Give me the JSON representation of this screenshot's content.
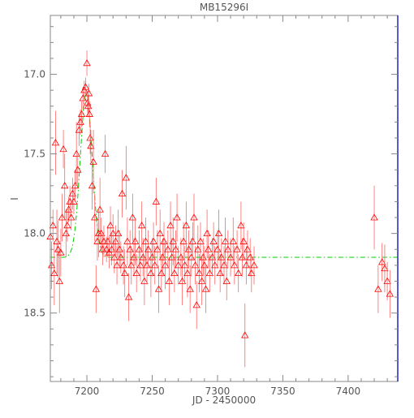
{
  "chart_data": {
    "type": "scatter",
    "title": "MB15296I",
    "xlabel": "JD - 2450000",
    "ylabel": "I",
    "xlim": [
      7172,
      7438
    ],
    "ylim": [
      18.93,
      16.63
    ],
    "y_inverted": true,
    "x_ticks": [
      7200,
      7250,
      7300,
      7350,
      7400
    ],
    "y_ticks": [
      17.0,
      17.5,
      18.0,
      18.5
    ],
    "grid": false,
    "series": [
      {
        "marker": "triangle",
        "color": "#ff0000",
        "points": [
          [
            7172,
            18.02,
            0.1
          ],
          [
            7173,
            18.2,
            0.15
          ],
          [
            7174,
            17.95,
            0.1
          ],
          [
            7175,
            18.25,
            0.2
          ],
          [
            7176,
            17.43,
            0.2
          ],
          [
            7177,
            18.05,
            0.2
          ],
          [
            7178,
            18.1,
            0.18
          ],
          [
            7179,
            18.3,
            0.2
          ],
          [
            7180,
            18.12,
            0.15
          ],
          [
            7181,
            17.9,
            0.15
          ],
          [
            7182,
            17.47,
            0.12
          ],
          [
            7183,
            17.7,
            0.2
          ],
          [
            7184,
            18.0,
            0.15
          ],
          [
            7185,
            17.95,
            0.1
          ],
          [
            7186,
            17.85,
            0.08
          ],
          [
            7187,
            17.8,
            0.1
          ],
          [
            7188,
            17.9,
            0.08
          ],
          [
            7189,
            17.75,
            0.1
          ],
          [
            7190,
            17.8,
            0.08
          ],
          [
            7191,
            17.7,
            0.1
          ],
          [
            7192,
            17.5,
            0.2
          ],
          [
            7193,
            17.6,
            0.1
          ],
          [
            7194,
            17.35,
            0.1
          ],
          [
            7195,
            17.3,
            0.08
          ],
          [
            7196,
            17.25,
            0.08
          ],
          [
            7197,
            17.15,
            0.07
          ],
          [
            7198,
            17.1,
            0.06
          ],
          [
            7199,
            17.08,
            0.06
          ],
          [
            7200,
            16.93,
            0.08
          ],
          [
            7200.5,
            17.18,
            0.06
          ],
          [
            7201,
            17.2,
            0.07
          ],
          [
            7201.5,
            17.12,
            0.06
          ],
          [
            7202,
            17.25,
            0.08
          ],
          [
            7202.5,
            17.4,
            0.1
          ],
          [
            7203,
            17.45,
            0.1
          ],
          [
            7204,
            17.7,
            0.15
          ],
          [
            7205,
            17.55,
            0.2
          ],
          [
            7206,
            17.9,
            0.15
          ],
          [
            7207,
            18.35,
            0.15
          ],
          [
            7208,
            18.05,
            0.12
          ],
          [
            7209,
            18.0,
            0.15
          ],
          [
            7210,
            17.85,
            0.2
          ],
          [
            7211,
            18.0,
            0.1
          ],
          [
            7212,
            18.1,
            0.1
          ],
          [
            7213,
            18.05,
            0.1
          ],
          [
            7214,
            17.5,
            0.12
          ],
          [
            7215,
            18.1,
            0.08
          ],
          [
            7216,
            18.05,
            0.1
          ],
          [
            7217,
            18.12,
            0.1
          ],
          [
            7218,
            17.95,
            0.12
          ],
          [
            7219,
            18.1,
            0.1
          ],
          [
            7220,
            18.0,
            0.12
          ],
          [
            7221,
            18.15,
            0.1
          ],
          [
            7222,
            18.05,
            0.1
          ],
          [
            7223,
            18.2,
            0.12
          ],
          [
            7224,
            18.0,
            0.15
          ],
          [
            7225,
            18.1,
            0.12
          ],
          [
            7226,
            18.15,
            0.1
          ],
          [
            7227,
            17.75,
            0.15
          ],
          [
            7228,
            18.2,
            0.12
          ],
          [
            7229,
            18.25,
            0.15
          ],
          [
            7230,
            17.65,
            0.2
          ],
          [
            7231,
            18.05,
            0.15
          ],
          [
            7232,
            18.4,
            0.15
          ],
          [
            7233,
            18.1,
            0.12
          ],
          [
            7234,
            18.2,
            0.12
          ],
          [
            7235,
            17.9,
            0.15
          ],
          [
            7236,
            18.15,
            0.12
          ],
          [
            7237,
            18.05,
            0.15
          ],
          [
            7238,
            18.25,
            0.12
          ],
          [
            7240,
            18.1,
            0.12
          ],
          [
            7241,
            18.2,
            0.1
          ],
          [
            7242,
            17.95,
            0.15
          ],
          [
            7243,
            18.15,
            0.12
          ],
          [
            7244,
            18.3,
            0.15
          ],
          [
            7245,
            18.05,
            0.15
          ],
          [
            7246,
            18.2,
            0.12
          ],
          [
            7247,
            18.1,
            0.12
          ],
          [
            7249,
            18.25,
            0.15
          ],
          [
            7250,
            18.15,
            0.12
          ],
          [
            7251,
            18.05,
            0.12
          ],
          [
            7252,
            18.2,
            0.12
          ],
          [
            7253,
            17.8,
            0.15
          ],
          [
            7254,
            18.1,
            0.12
          ],
          [
            7255,
            18.35,
            0.15
          ],
          [
            7256,
            18.0,
            0.15
          ],
          [
            7257,
            18.25,
            0.12
          ],
          [
            7258,
            18.15,
            0.12
          ],
          [
            7259,
            18.05,
            0.12
          ],
          [
            7260,
            18.2,
            0.15
          ],
          [
            7262,
            18.1,
            0.12
          ],
          [
            7263,
            18.3,
            0.15
          ],
          [
            7264,
            17.95,
            0.15
          ],
          [
            7265,
            18.15,
            0.12
          ],
          [
            7266,
            18.05,
            0.15
          ],
          [
            7267,
            18.25,
            0.12
          ],
          [
            7268,
            18.1,
            0.12
          ],
          [
            7269,
            17.9,
            0.15
          ],
          [
            7270,
            18.2,
            0.12
          ],
          [
            7272,
            18.15,
            0.12
          ],
          [
            7273,
            18.3,
            0.15
          ],
          [
            7274,
            18.05,
            0.12
          ],
          [
            7275,
            18.2,
            0.12
          ],
          [
            7276,
            17.95,
            0.15
          ],
          [
            7277,
            18.25,
            0.15
          ],
          [
            7278,
            18.1,
            0.12
          ],
          [
            7279,
            18.35,
            0.15
          ],
          [
            7280,
            18.15,
            0.12
          ],
          [
            7281,
            18.05,
            0.12
          ],
          [
            7282,
            17.9,
            0.15
          ],
          [
            7283,
            18.2,
            0.12
          ],
          [
            7284,
            18.45,
            0.15
          ],
          [
            7285,
            18.1,
            0.15
          ],
          [
            7286,
            18.25,
            0.12
          ],
          [
            7287,
            18.05,
            0.12
          ],
          [
            7288,
            18.3,
            0.15
          ],
          [
            7289,
            18.15,
            0.12
          ],
          [
            7290,
            18.2,
            0.12
          ],
          [
            7291,
            18.35,
            0.15
          ],
          [
            7292,
            18.0,
            0.15
          ],
          [
            7293,
            18.1,
            0.12
          ],
          [
            7294,
            18.25,
            0.12
          ],
          [
            7296,
            18.15,
            0.12
          ],
          [
            7297,
            18.05,
            0.12
          ],
          [
            7298,
            18.2,
            0.12
          ],
          [
            7300,
            18.1,
            0.12
          ],
          [
            7301,
            18.0,
            0.15
          ],
          [
            7302,
            18.25,
            0.12
          ],
          [
            7303,
            18.15,
            0.12
          ],
          [
            7305,
            18.2,
            0.12
          ],
          [
            7306,
            18.05,
            0.15
          ],
          [
            7307,
            18.3,
            0.12
          ],
          [
            7308,
            18.1,
            0.12
          ],
          [
            7310,
            18.15,
            0.12
          ],
          [
            7312,
            18.05,
            0.15
          ],
          [
            7313,
            18.2,
            0.12
          ],
          [
            7315,
            18.1,
            0.12
          ],
          [
            7316,
            18.25,
            0.12
          ],
          [
            7318,
            17.95,
            0.15
          ],
          [
            7319,
            18.15,
            0.12
          ],
          [
            7320,
            18.05,
            0.12
          ],
          [
            7321,
            18.64,
            0.2
          ],
          [
            7322,
            18.2,
            0.12
          ],
          [
            7323,
            18.1,
            0.12
          ],
          [
            7325,
            18.15,
            0.12
          ],
          [
            7326,
            18.25,
            0.12
          ],
          [
            7328,
            18.2,
            0.12
          ],
          [
            7420,
            17.9,
            0.2
          ],
          [
            7423,
            18.35,
            0.15
          ],
          [
            7426,
            18.18,
            0.12
          ],
          [
            7428,
            18.22,
            0.15
          ],
          [
            7430,
            18.3,
            0.12
          ],
          [
            7432,
            18.38,
            0.15
          ]
        ]
      }
    ],
    "model": {
      "type": "line",
      "style": "dash-dot",
      "color": "#00cc00",
      "baseline": 18.15,
      "peak": 17.12,
      "t0": 7199.5,
      "tau": 6.5
    }
  }
}
